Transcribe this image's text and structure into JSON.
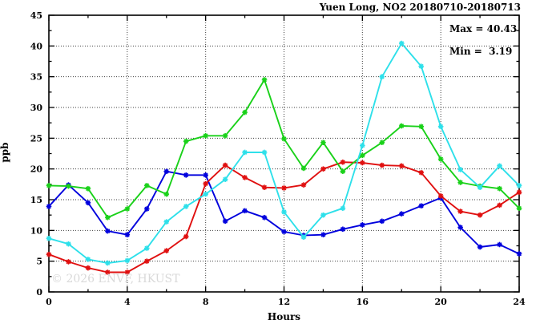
{
  "chart_data": {
    "type": "line",
    "title": "Yuen Long, NO2 20180710-20180713",
    "xlabel": "Hours",
    "ylabel": "ppb",
    "annotation": {
      "max_line": "Max = 40.43",
      "min_line": "Min =  3.19"
    },
    "watermark": "© 2026 ENVF, HKUST",
    "xlim": [
      0,
      24
    ],
    "ylim": [
      0,
      45
    ],
    "x_tick_step": 4,
    "x_minor_step": 2,
    "y_tick_step": 5,
    "y_minor_step": 2.5,
    "grid": "dotted, at every major tick",
    "legend_position": "none",
    "x": [
      0,
      1,
      2,
      3,
      4,
      5,
      6,
      7,
      8,
      9,
      10,
      11,
      12,
      13,
      14,
      15,
      16,
      17,
      18,
      19,
      20,
      21,
      22,
      23,
      24
    ],
    "series": [
      {
        "name": "blue",
        "color": "#0000dd",
        "values": [
          13.9,
          17.4,
          14.5,
          9.9,
          9.3,
          13.5,
          19.6,
          19.0,
          19.0,
          11.5,
          13.2,
          12.1,
          9.8,
          9.2,
          9.3,
          10.2,
          10.9,
          11.5,
          12.7,
          14.0,
          15.3,
          10.5,
          7.3,
          7.7,
          6.2
        ]
      },
      {
        "name": "red",
        "color": "#e01010",
        "values": [
          6.1,
          4.9,
          3.9,
          3.19,
          3.19,
          5.0,
          6.7,
          9.0,
          17.6,
          20.6,
          18.6,
          17.0,
          16.9,
          17.4,
          20.0,
          21.1,
          21.0,
          20.6,
          20.5,
          19.4,
          15.6,
          13.1,
          12.5,
          14.1,
          16.2
        ]
      },
      {
        "name": "green",
        "color": "#19d119",
        "values": [
          17.3,
          17.2,
          16.8,
          12.1,
          13.5,
          17.3,
          15.9,
          24.5,
          25.4,
          25.4,
          29.2,
          34.5,
          24.9,
          20.1,
          24.3,
          19.6,
          22.2,
          24.3,
          27.0,
          26.9,
          21.6,
          17.8,
          17.2,
          16.8,
          13.6
        ]
      },
      {
        "name": "cyan",
        "color": "#2ee0ea",
        "values": [
          8.7,
          7.8,
          5.3,
          4.7,
          5.1,
          7.1,
          11.4,
          13.9,
          15.9,
          18.3,
          22.7,
          22.7,
          13.0,
          8.9,
          12.5,
          13.6,
          23.8,
          35.0,
          40.43,
          36.7,
          26.9,
          19.9,
          17.0,
          20.5,
          17.3
        ]
      }
    ],
    "stats": {
      "max": 40.43,
      "min": 3.19
    }
  }
}
